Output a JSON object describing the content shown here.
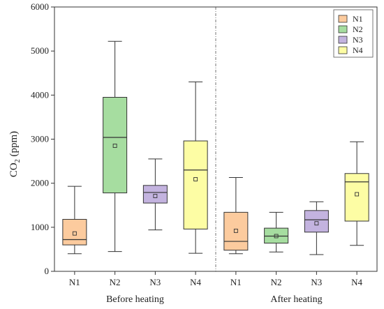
{
  "chart_data": {
    "type": "box",
    "ylabel": "CO",
    "ylabel_sub": "2",
    "ylabel_unit": " (ppm)",
    "ylim": [
      0,
      6000
    ],
    "yticks": [
      "0",
      "1000",
      "2000",
      "3000",
      "4000",
      "5000",
      "6000"
    ],
    "grid": false,
    "legend_position": "top-right",
    "groups": [
      {
        "label": "Before heating",
        "boxes": [
          {
            "category": "N1",
            "min": 400,
            "q1": 600,
            "median": 720,
            "q3": 1180,
            "max": 1930,
            "mean": 860,
            "color": "#FCCB9E"
          },
          {
            "category": "N2",
            "min": 450,
            "q1": 1780,
            "median": 3040,
            "q3": 3950,
            "max": 5220,
            "mean": 2850,
            "color": "#A6DDA0"
          },
          {
            "category": "N3",
            "min": 940,
            "q1": 1550,
            "median": 1790,
            "q3": 1950,
            "max": 2550,
            "mean": 1710,
            "color": "#C3B3DF"
          },
          {
            "category": "N4",
            "min": 410,
            "q1": 960,
            "median": 2300,
            "q3": 2960,
            "max": 4300,
            "mean": 2090,
            "color": "#FDFDA4"
          }
        ]
      },
      {
        "label": "After heating",
        "boxes": [
          {
            "category": "N1",
            "min": 400,
            "q1": 480,
            "median": 680,
            "q3": 1340,
            "max": 2130,
            "mean": 920,
            "color": "#FCCB9E"
          },
          {
            "category": "N2",
            "min": 440,
            "q1": 640,
            "median": 800,
            "q3": 980,
            "max": 1340,
            "mean": 800,
            "color": "#A6DDA0"
          },
          {
            "category": "N3",
            "min": 380,
            "q1": 890,
            "median": 1170,
            "q3": 1380,
            "max": 1580,
            "mean": 1090,
            "color": "#C3B3DF"
          },
          {
            "category": "N4",
            "min": 590,
            "q1": 1140,
            "median": 2030,
            "q3": 2220,
            "max": 2940,
            "mean": 1750,
            "color": "#FDFDA4"
          }
        ]
      }
    ],
    "legend": [
      {
        "label": "N1",
        "color": "#FCCB9E"
      },
      {
        "label": "N2",
        "color": "#A6DDA0"
      },
      {
        "label": "N3",
        "color": "#C3B3DF"
      },
      {
        "label": "N4",
        "color": "#FDFDA4"
      }
    ]
  }
}
